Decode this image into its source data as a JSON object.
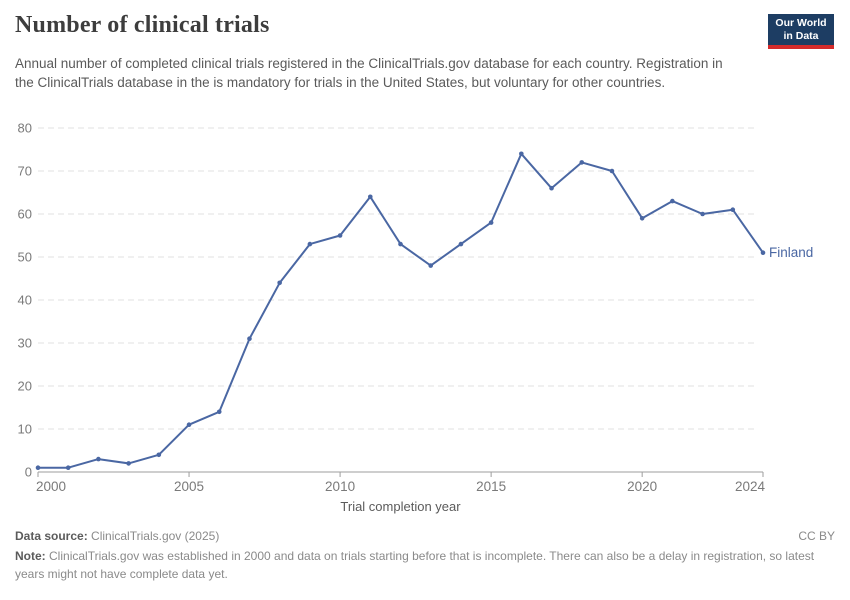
{
  "header": {
    "title": "Number of clinical trials",
    "subtitle": "Annual number of completed clinical trials registered in the ClinicalTrials.gov database for each country. Registration in the ClinicalTrials database in the is mandatory for trials in the United States, but voluntary for other countries."
  },
  "logo": {
    "line1": "Our World",
    "line2": "in Data",
    "bg_color": "#1d3d63",
    "accent_color": "#d42b2b"
  },
  "chart_data": {
    "type": "line",
    "title": "Number of clinical trials",
    "xlabel": "Trial completion year",
    "ylabel": "",
    "xlim": [
      2000,
      2024
    ],
    "ylim": [
      0,
      80
    ],
    "yticks": [
      0,
      10,
      20,
      30,
      40,
      50,
      60,
      70,
      80
    ],
    "xticks": [
      2000,
      2005,
      2010,
      2015,
      2020,
      2024
    ],
    "grid": "horizontal-dashed",
    "legend_position": "end-of-line-label",
    "series": [
      {
        "name": "Finland",
        "color": "#4a67a3",
        "x": [
          2000,
          2001,
          2002,
          2003,
          2004,
          2005,
          2006,
          2007,
          2008,
          2009,
          2010,
          2011,
          2012,
          2013,
          2014,
          2015,
          2016,
          2017,
          2018,
          2019,
          2020,
          2021,
          2022,
          2023,
          2024
        ],
        "values": [
          1,
          1,
          3,
          2,
          4,
          11,
          14,
          31,
          44,
          53,
          55,
          64,
          53,
          48,
          53,
          58,
          74,
          66,
          72,
          70,
          59,
          63,
          60,
          61,
          51
        ]
      }
    ],
    "style": {
      "grid_color": "#e2e2e2",
      "axis_color": "#9e9e9e",
      "tick_label_color": "#7a7a7a",
      "axis_title_color": "#5b5b5b"
    }
  },
  "footer": {
    "data_source_label": "Data source:",
    "data_source_value": "ClinicalTrials.gov (2025)",
    "license": "CC BY",
    "note_label": "Note:",
    "note_text": "ClinicalTrials.gov was established in 2000 and data on trials starting before that is incomplete. There can also be a delay in registration, so latest years might not have complete data yet."
  }
}
